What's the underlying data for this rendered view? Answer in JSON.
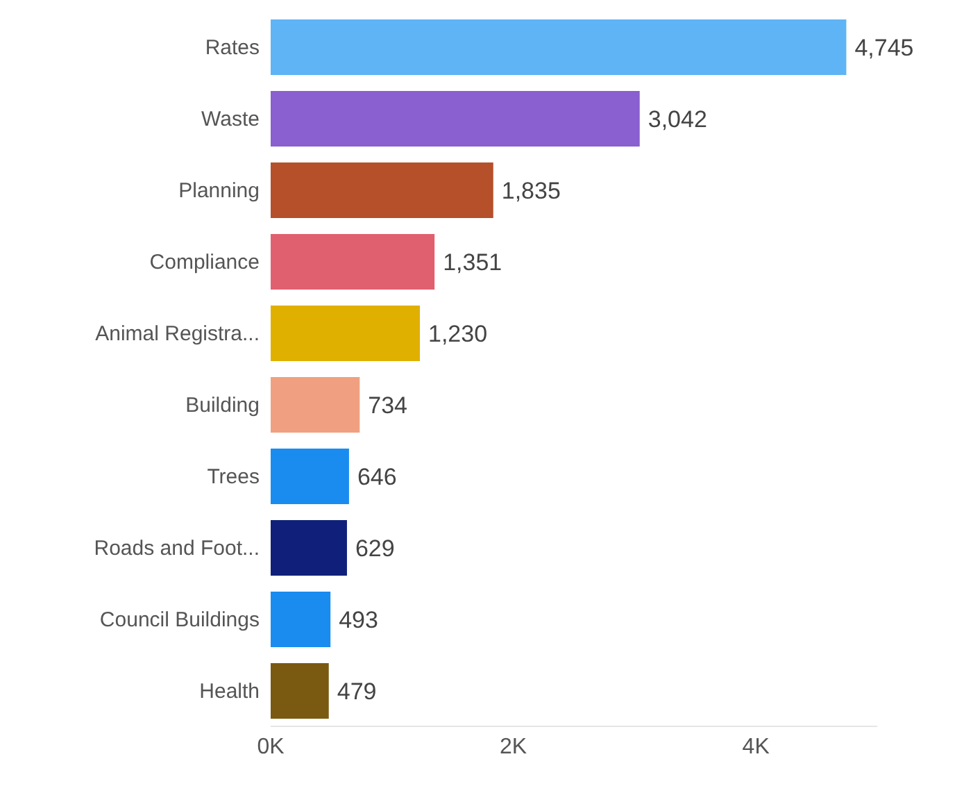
{
  "chart_data": {
    "type": "bar",
    "orientation": "horizontal",
    "categories": [
      "Rates",
      "Waste",
      "Planning",
      "Compliance",
      "Animal Registra...",
      "Building",
      "Trees",
      "Roads and Foot...",
      "Council Buildings",
      "Health"
    ],
    "values": [
      4745,
      3042,
      1835,
      1351,
      1230,
      734,
      646,
      629,
      493,
      479
    ],
    "value_labels": [
      "4,745",
      "3,042",
      "1,835",
      "1,351",
      "1,230",
      "734",
      "646",
      "629",
      "493",
      "479"
    ],
    "colors": [
      "#5fb4f5",
      "#8a5fcf",
      "#b5502b",
      "#e06070",
      "#e0b000",
      "#f0a080",
      "#1a8cf0",
      "#10207a",
      "#1a8cf0",
      "#7a5a10"
    ],
    "xticks": [
      {
        "value": 0,
        "label": "0K"
      },
      {
        "value": 2000,
        "label": "2K"
      },
      {
        "value": 4000,
        "label": "4K"
      }
    ],
    "xlim": [
      0,
      5000
    ],
    "grid": false
  }
}
